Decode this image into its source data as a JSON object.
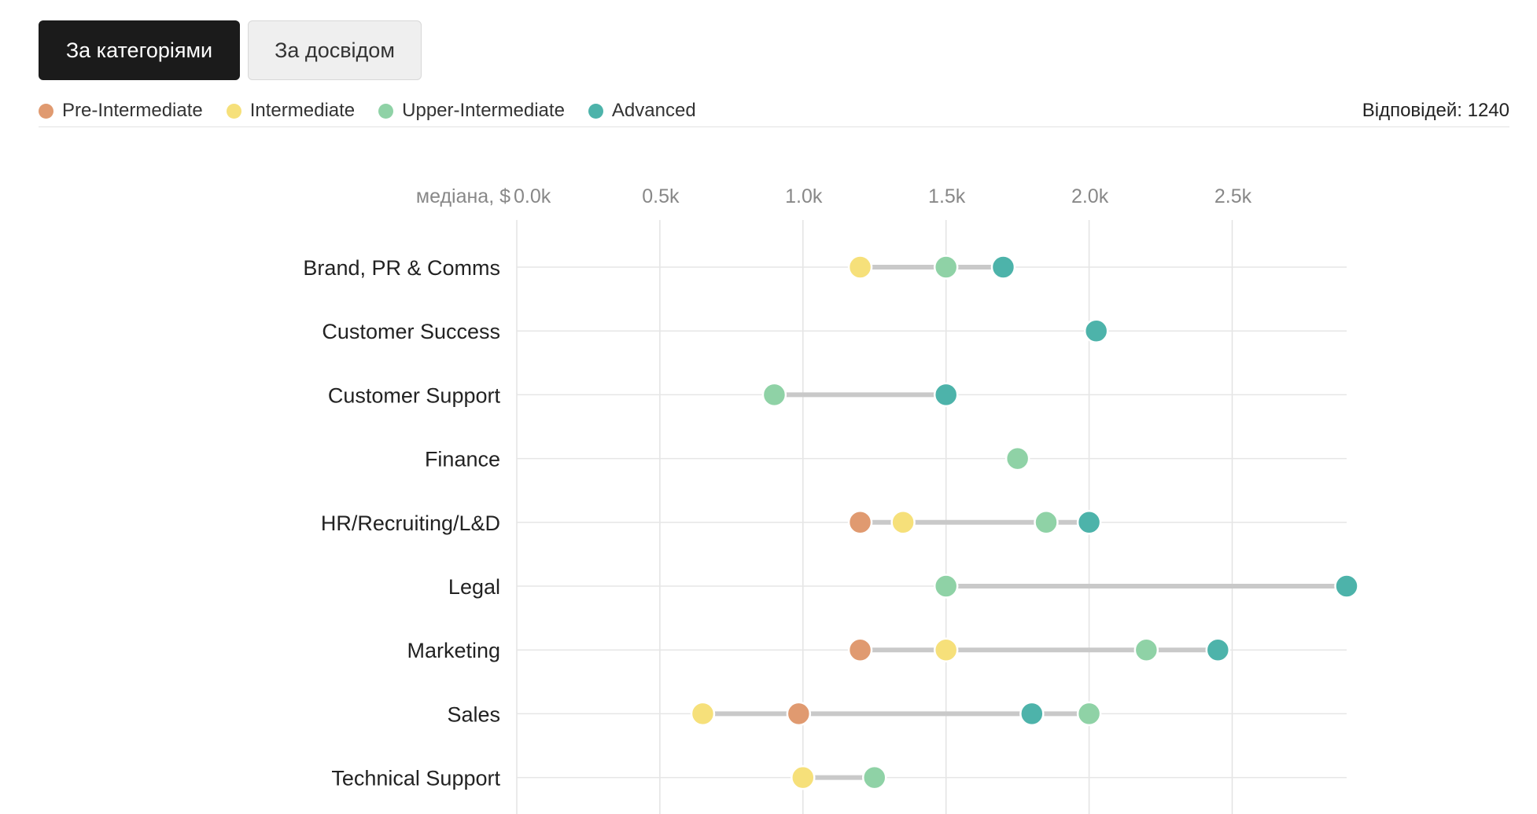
{
  "toggle": {
    "active_label": "За категоріями",
    "inactive_label": "За досвідом"
  },
  "legend": {
    "items": [
      {
        "label": "Pre-Intermediate",
        "color": "#e09a70"
      },
      {
        "label": "Intermediate",
        "color": "#f6e07a"
      },
      {
        "label": "Upper-Intermediate",
        "color": "#8fd2a6"
      },
      {
        "label": "Advanced",
        "color": "#4db3aa"
      }
    ]
  },
  "responses_label": "Відповідей: 1240",
  "chart_data": {
    "type": "dumbbell",
    "xlabel": "медіана, $",
    "xlim": [
      0,
      2900
    ],
    "ticks": [
      {
        "value": 0,
        "label": "0.0k"
      },
      {
        "value": 500,
        "label": "0.5k"
      },
      {
        "value": 1000,
        "label": "1.0k"
      },
      {
        "value": 1500,
        "label": "1.5k"
      },
      {
        "value": 2000,
        "label": "2.0k"
      },
      {
        "value": 2500,
        "label": "2.5k"
      }
    ],
    "series": [
      {
        "name": "Pre-Intermediate",
        "color": "#e09a70"
      },
      {
        "name": "Intermediate",
        "color": "#f6e07a"
      },
      {
        "name": "Upper-Intermediate",
        "color": "#8fd2a6"
      },
      {
        "name": "Advanced",
        "color": "#4db3aa"
      }
    ],
    "categories": [
      {
        "label": "Brand, PR & Comms",
        "values": {
          "Intermediate": 1200,
          "Upper-Intermediate": 1500,
          "Advanced": 1700
        }
      },
      {
        "label": "Customer Success",
        "values": {
          "Advanced": 2025
        }
      },
      {
        "label": "Customer Support",
        "values": {
          "Upper-Intermediate": 900,
          "Advanced": 1500
        }
      },
      {
        "label": "Finance",
        "values": {
          "Upper-Intermediate": 1750
        }
      },
      {
        "label": "HR/Recruiting/L&D",
        "values": {
          "Pre-Intermediate": 1200,
          "Intermediate": 1350,
          "Upper-Intermediate": 1850,
          "Advanced": 2000
        }
      },
      {
        "label": "Legal",
        "values": {
          "Upper-Intermediate": 1500,
          "Advanced": 2900
        }
      },
      {
        "label": "Marketing",
        "values": {
          "Pre-Intermediate": 1200,
          "Intermediate": 1500,
          "Upper-Intermediate": 2200,
          "Advanced": 2450
        }
      },
      {
        "label": "Sales",
        "values": {
          "Intermediate": 650,
          "Pre-Intermediate": 985,
          "Advanced": 1800,
          "Upper-Intermediate": 2000
        }
      },
      {
        "label": "Technical Support",
        "values": {
          "Intermediate": 1000,
          "Upper-Intermediate": 1250
        }
      }
    ]
  }
}
